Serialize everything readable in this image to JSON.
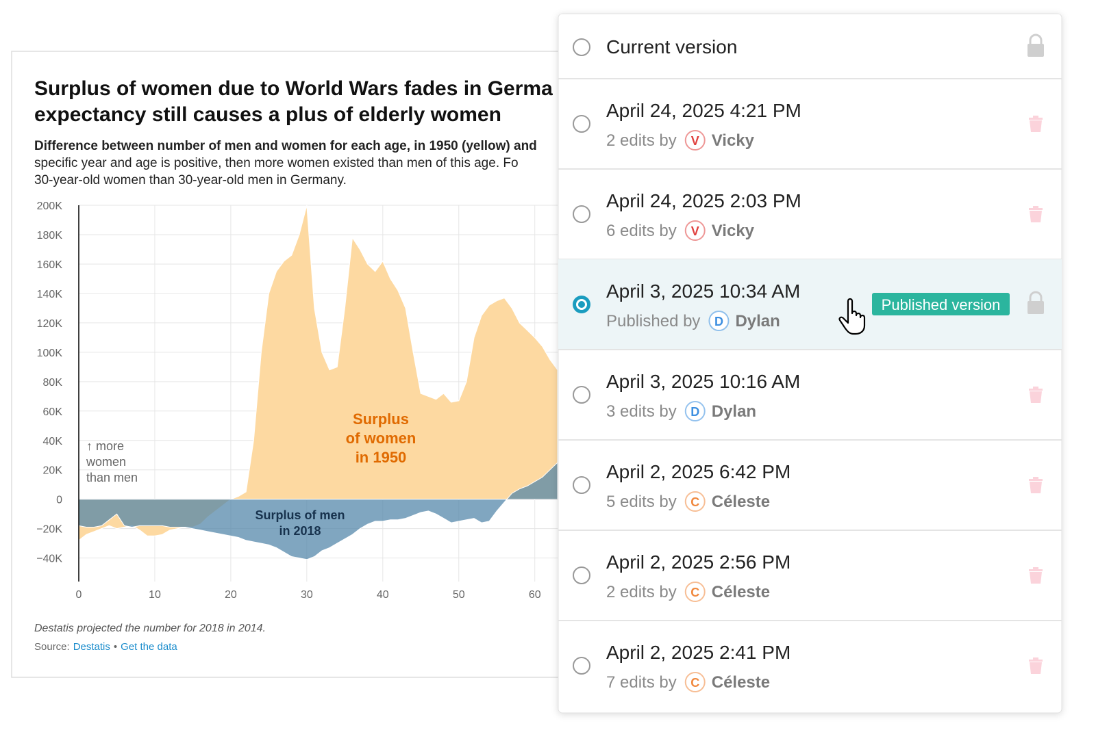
{
  "chart": {
    "type": "area",
    "title": [
      "Surplus of women due to World Wars fades in Germa",
      "expectancy still causes a plus of elderly women"
    ],
    "description": [
      "Difference between number of men and women for each age, in 1950 (yellow) and",
      "specific year and age is positive, then more women existed than men of this age. Fo",
      "30-year-old women than 30-year-old men in Germany."
    ],
    "x": [
      0,
      1,
      2,
      3,
      4,
      5,
      6,
      7,
      8,
      9,
      10,
      11,
      12,
      13,
      14,
      15,
      16,
      17,
      18,
      19,
      20,
      21,
      22,
      23,
      24,
      25,
      26,
      27,
      28,
      29,
      30,
      31,
      32,
      33,
      34,
      35,
      36,
      37,
      38,
      39,
      40,
      41,
      42,
      43,
      44,
      45,
      46,
      47,
      48,
      49,
      50,
      51,
      52,
      53,
      54,
      55,
      56,
      57,
      58,
      59,
      60,
      61,
      62,
      63
    ],
    "series": [
      {
        "name": "1950",
        "color": "#fdd9a1",
        "values": [
          -28000,
          -24000,
          -22000,
          -20000,
          -18000,
          -20000,
          -19000,
          -18000,
          -21000,
          -25000,
          -25000,
          -24000,
          -21000,
          -20000,
          -19000,
          -19000,
          -17000,
          -12000,
          -8000,
          -4000,
          0,
          2000,
          5000,
          40000,
          100000,
          140000,
          155000,
          162000,
          166000,
          180000,
          200000,
          130000,
          100000,
          88000,
          90000,
          130000,
          178000,
          170000,
          160000,
          155000,
          162000,
          150000,
          142000,
          130000,
          100000,
          72000,
          70000,
          68000,
          72000,
          66000,
          67000,
          80000,
          110000,
          125000,
          132000,
          135000,
          137000,
          130000,
          120000,
          115000,
          110000,
          104000,
          95000,
          88000
        ]
      },
      {
        "name": "2018",
        "color": "#4f83a8",
        "values": [
          -18000,
          -19000,
          -19000,
          -18000,
          -14000,
          -10000,
          -18000,
          -19000,
          -18000,
          -18000,
          -18000,
          -18000,
          -19000,
          -19000,
          -19000,
          -20000,
          -21000,
          -22000,
          -23000,
          -24000,
          -25000,
          -26000,
          -28000,
          -29000,
          -30000,
          -31000,
          -33000,
          -36000,
          -39000,
          -40000,
          -41000,
          -39000,
          -35000,
          -33000,
          -30000,
          -27000,
          -24000,
          -20000,
          -17000,
          -15000,
          -15000,
          -14000,
          -14000,
          -13000,
          -11000,
          -9000,
          -8000,
          -10000,
          -13000,
          -16000,
          -15000,
          -14000,
          -13000,
          -16000,
          -15000,
          -8000,
          -2000,
          4000,
          7000,
          9000,
          12000,
          15000,
          20000,
          25000
        ]
      }
    ],
    "xlim": [
      0,
      63
    ],
    "xticks": [
      0,
      10,
      20,
      30,
      40,
      50,
      60
    ],
    "ylim": [
      -56000,
      200000
    ],
    "yticks": [
      {
        "value": 200000,
        "label": "200K"
      },
      {
        "value": 180000,
        "label": "180K"
      },
      {
        "value": 160000,
        "label": "160K"
      },
      {
        "value": 140000,
        "label": "140K"
      },
      {
        "value": 120000,
        "label": "120K"
      },
      {
        "value": 100000,
        "label": "100K"
      },
      {
        "value": 80000,
        "label": "80K"
      },
      {
        "value": 60000,
        "label": "60K"
      },
      {
        "value": 40000,
        "label": "40K"
      },
      {
        "value": 20000,
        "label": "20K"
      },
      0,
      {
        "value": -20000,
        "label": "−20K"
      },
      {
        "value": -40000,
        "label": "−40K"
      }
    ],
    "grid": true,
    "annotations": [
      {
        "lines": [
          "↑ more",
          "women",
          "than men"
        ]
      },
      {
        "lines": [
          "Surplus",
          "of women",
          "in 1950"
        ]
      },
      {
        "lines": [
          "Surplus of men",
          "in 2018"
        ]
      }
    ],
    "note": "Destatis projected the number for 2018 in 2014.",
    "source": {
      "label": "Source:",
      "link": "Destatis",
      "separator": "•",
      "data_link": "Get the data"
    }
  },
  "versions": [
    {
      "date": "Current version",
      "icon": "lock"
    },
    {
      "date": "April 24, 2025 4:21 PM",
      "action": "2 edits by",
      "initial": "V",
      "author": "Vicky",
      "color": "#e0413f",
      "icon": "trash"
    },
    {
      "date": "April 24, 2025 2:03 PM",
      "action": "6 edits by",
      "initial": "V",
      "author": "Vicky",
      "color": "#e0413f",
      "icon": "trash"
    },
    {
      "date": "April 3, 2025 10:34 AM",
      "action": "Published by",
      "initial": "D",
      "author": "Dylan",
      "color": "#3d8fe0",
      "icon": "lock",
      "selected": true,
      "badge": "Published version"
    },
    {
      "date": "April 3, 2025 10:16 AM",
      "action": "3 edits by",
      "initial": "D",
      "author": "Dylan",
      "color": "#3d8fe0",
      "icon": "trash"
    },
    {
      "date": "April 2, 2025 6:42 PM",
      "action": "5 edits by",
      "initial": "C",
      "author": "Céleste",
      "color": "#f0883e",
      "icon": "trash"
    },
    {
      "date": "April 2, 2025 2:56 PM",
      "action": "2 edits by",
      "initial": "C",
      "author": "Céleste",
      "color": "#f0883e",
      "icon": "trash"
    },
    {
      "date": "April 2, 2025 2:41 PM",
      "action": "7 edits by",
      "initial": "C",
      "author": "Céleste",
      "color": "#f0883e",
      "icon": "trash"
    }
  ]
}
